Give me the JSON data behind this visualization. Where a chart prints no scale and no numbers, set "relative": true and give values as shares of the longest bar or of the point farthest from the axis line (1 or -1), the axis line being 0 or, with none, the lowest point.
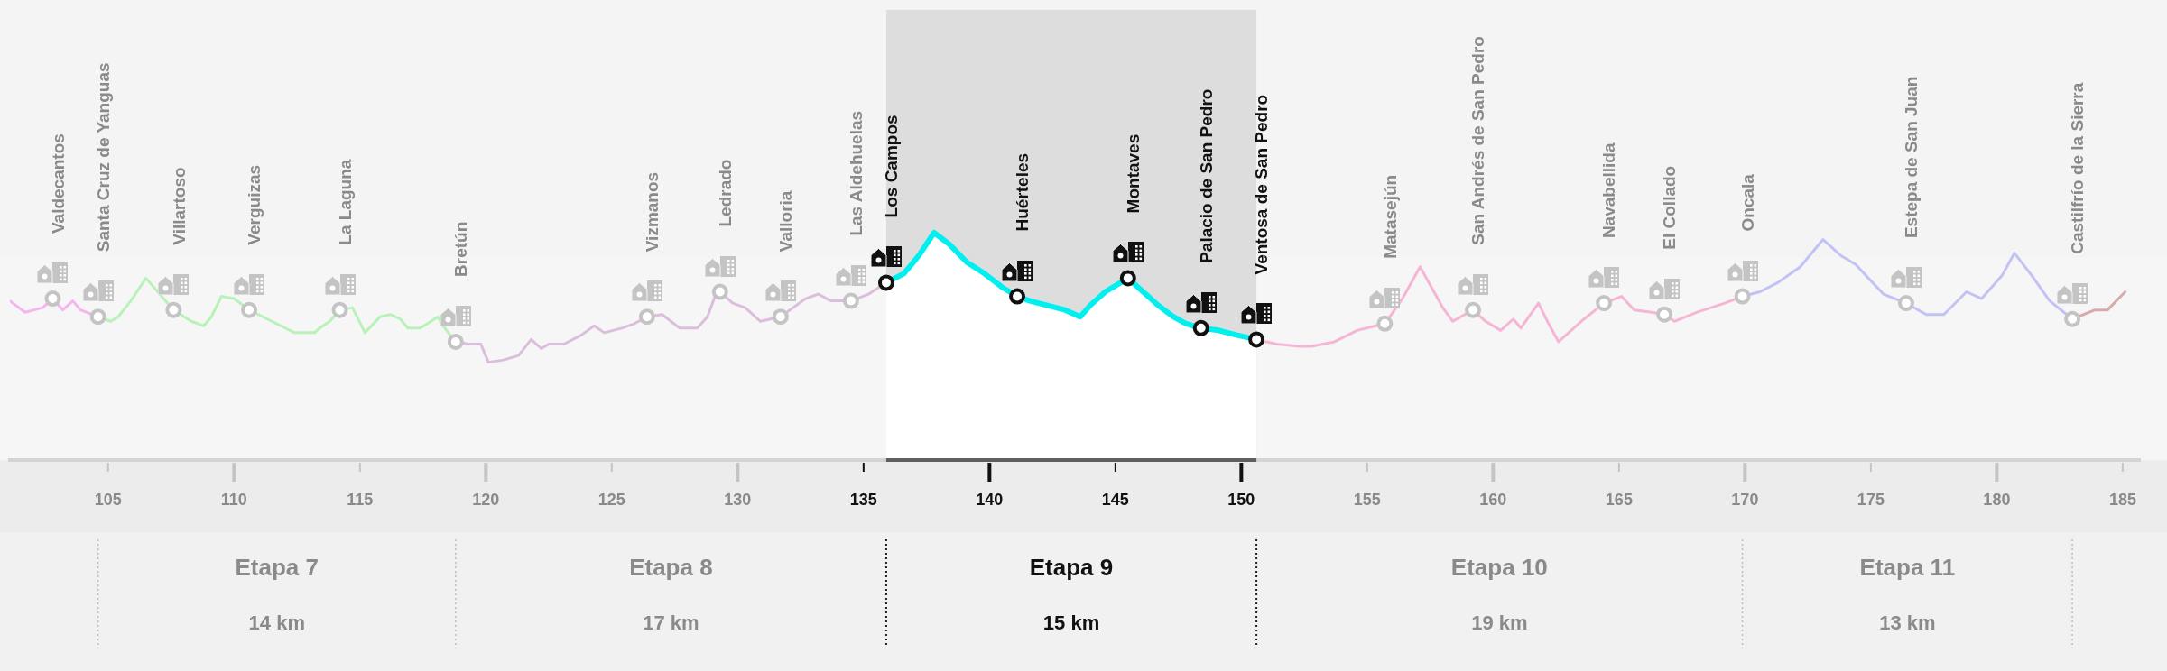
{
  "chart_data": {
    "type": "line",
    "relative": true,
    "xlim": [
      101.1,
      185.7
    ],
    "xticks": [
      105,
      110,
      115,
      120,
      125,
      130,
      135,
      140,
      145,
      150,
      155,
      160,
      165,
      170,
      175,
      180,
      185
    ],
    "series": [
      {
        "color": "#f5b5ee",
        "x": [
          101.1,
          101.7,
          102.4,
          102.8,
          103.2,
          103.6,
          103.9,
          104.6
        ],
        "values": [
          0.7,
          0.65,
          0.67,
          0.71,
          0.66,
          0.7,
          0.66,
          0.63
        ]
      },
      {
        "color": "#b8f2b8",
        "x": [
          104.6,
          105.1,
          105.4,
          105.9,
          106.5,
          107.2,
          107.6,
          108.3,
          108.8,
          109.1,
          109.5,
          110.0,
          110.6,
          111.5,
          112.4,
          113.2,
          113.4,
          113.8,
          114.2,
          114.7,
          115.2,
          115.8,
          116.2,
          116.6,
          116.9,
          117.4,
          118.1,
          118.3,
          118.8
        ],
        "values": [
          0.63,
          0.61,
          0.63,
          0.7,
          0.8,
          0.71,
          0.66,
          0.61,
          0.59,
          0.63,
          0.72,
          0.71,
          0.66,
          0.61,
          0.56,
          0.56,
          0.58,
          0.61,
          0.66,
          0.67,
          0.56,
          0.63,
          0.64,
          0.62,
          0.58,
          0.58,
          0.63,
          0.59,
          0.52
        ]
      },
      {
        "color": "#dcbedc",
        "x": [
          118.8,
          119.3,
          119.8,
          120.1,
          120.7,
          121.3,
          121.8,
          122.2,
          122.5,
          123.1,
          123.8,
          124.3,
          124.7,
          125.4,
          125.9,
          126.4,
          127.0,
          127.7,
          128.4,
          128.8,
          129.1,
          129.3,
          129.8,
          130.3,
          130.9,
          131.7,
          132.2,
          132.7,
          133.2,
          133.7,
          134.5,
          135.2,
          135.9
        ],
        "values": [
          0.52,
          0.51,
          0.51,
          0.43,
          0.44,
          0.46,
          0.53,
          0.49,
          0.51,
          0.51,
          0.55,
          0.59,
          0.56,
          0.58,
          0.6,
          0.63,
          0.64,
          0.58,
          0.58,
          0.63,
          0.72,
          0.74,
          0.69,
          0.67,
          0.61,
          0.63,
          0.67,
          0.71,
          0.73,
          0.7,
          0.7,
          0.73,
          0.78
        ]
      },
      {
        "type": "area",
        "color": "#00f0f0",
        "x": [
          135.9,
          136.6,
          137.2,
          137.8,
          138.4,
          139.1,
          139.8,
          140.5,
          141.1,
          141.6,
          142.3,
          143.0,
          143.6,
          144.0,
          144.6,
          145.5,
          146.0,
          146.7,
          147.3,
          147.8,
          148.4,
          149.1,
          149.8,
          150.6
        ],
        "values": [
          0.78,
          0.82,
          0.9,
          1.0,
          0.95,
          0.87,
          0.82,
          0.76,
          0.72,
          0.7,
          0.68,
          0.66,
          0.63,
          0.68,
          0.74,
          0.8,
          0.75,
          0.68,
          0.63,
          0.6,
          0.58,
          0.57,
          0.55,
          0.53
        ]
      },
      {
        "color": "#f5b6d6",
        "x": [
          150.6,
          151.4,
          152.3,
          152.8,
          153.7,
          154.6,
          155.7,
          156.4,
          157.1,
          157.6,
          158.0,
          158.4,
          159.2,
          159.7,
          160.3,
          160.8,
          161.1,
          161.8,
          162.2,
          162.6,
          163.5,
          164.4,
          165.1,
          165.6,
          166.3,
          166.8,
          167.2,
          168.1,
          169.2,
          169.9
        ],
        "values": [
          0.53,
          0.51,
          0.5,
          0.5,
          0.52,
          0.57,
          0.6,
          0.71,
          0.85,
          0.75,
          0.67,
          0.61,
          0.66,
          0.61,
          0.57,
          0.62,
          0.58,
          0.69,
          0.6,
          0.52,
          0.61,
          0.69,
          0.72,
          0.66,
          0.65,
          0.64,
          0.61,
          0.65,
          0.69,
          0.72
        ]
      },
      {
        "color": "#c2c2f5",
        "x": [
          169.9,
          170.6,
          171.3,
          172.2,
          173.1,
          173.8,
          174.4,
          174.9,
          175.5,
          176.4,
          177.2,
          177.9,
          178.8,
          179.4,
          180.2,
          180.7,
          181.4,
          182.1,
          183.0
        ],
        "values": [
          0.72,
          0.74,
          0.78,
          0.85,
          0.97,
          0.9,
          0.86,
          0.8,
          0.73,
          0.69,
          0.64,
          0.64,
          0.74,
          0.71,
          0.81,
          0.91,
          0.81,
          0.7,
          0.62
        ]
      },
      {
        "color": "#d6abab",
        "x": [
          183.0,
          183.9,
          184.4,
          185.1
        ],
        "values": [
          0.62,
          0.66,
          0.66,
          0.74
        ]
      },
      {
        "type": "scatter",
        "marker": "circle",
        "x": [
          102.8,
          104.6,
          107.6,
          110.6,
          114.2,
          118.8,
          126.4,
          129.3,
          131.7,
          134.5,
          135.9,
          141.1,
          145.5,
          148.4,
          150.6,
          155.7,
          159.2,
          164.4,
          166.8,
          169.9,
          176.4,
          183.0
        ],
        "values": [
          0.71,
          0.63,
          0.66,
          0.66,
          0.66,
          0.52,
          0.63,
          0.74,
          0.63,
          0.7,
          0.78,
          0.72,
          0.8,
          0.58,
          0.53,
          0.6,
          0.66,
          0.69,
          0.64,
          0.72,
          0.69,
          0.62
        ],
        "colors": [
          "#c4c4c4",
          "#c4c4c4",
          "#c4c4c4",
          "#c4c4c4",
          "#c4c4c4",
          "#c4c4c4",
          "#c4c4c4",
          "#c4c4c4",
          "#c4c4c4",
          "#c4c4c4",
          "#111111",
          "#111111",
          "#111111",
          "#111111",
          "#111111",
          "#c4c4c4",
          "#c4c4c4",
          "#c4c4c4",
          "#c4c4c4",
          "#c4c4c4",
          "#c4c4c4",
          "#c4c4c4"
        ]
      }
    ],
    "bands": [
      {
        "axis": "x",
        "from": 135.9,
        "to": 150.6,
        "color": "#dddddd"
      }
    ],
    "annotations": [
      "Valdecantos",
      "Santa Cruz de Yanguas",
      "Villartoso",
      "Verguizas",
      "La Laguna",
      "Bretún",
      "Vizmanos",
      "Ledrado",
      "Valloria",
      "Las Aldehuelas",
      "Los Campos",
      "Huérteles",
      "Montaves",
      "Palacio de San Pedro",
      "Ventosa de San Pedro",
      "Matasejún",
      "San Andrés de San Pedro",
      "Navabellida",
      "El Collado",
      "Oncala",
      "Estepa de San Juan",
      "Castilfrío de la Sierra",
      "Etapa 7",
      "14 km",
      "Etapa 8",
      "17 km",
      "Etapa 9",
      "15 km",
      "Etapa 10",
      "19 km",
      "Etapa 11",
      "13 km"
    ]
  }
}
